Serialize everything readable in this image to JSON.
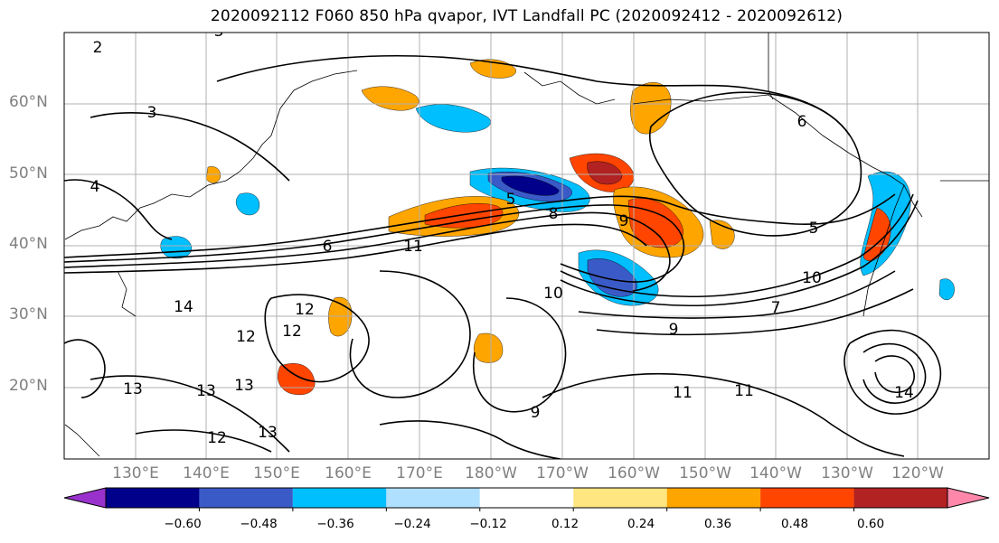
{
  "title": "2020092112 F060 850 hPa qvapor, IVT Landfall PC (2020092412 - 2020092612)",
  "latitude_labels": [
    "60°N",
    "50°N",
    "40°N",
    "30°N",
    "20°N"
  ],
  "longitude_labels": [
    "130°E",
    "140°E",
    "150°E",
    "160°E",
    "170°E",
    "180°W",
    "170°W",
    "160°W",
    "150°W",
    "140°W",
    "130°W",
    "120°W"
  ],
  "contour_labels": [
    "2",
    "3",
    "3",
    "4",
    "5",
    "5",
    "6",
    "6",
    "7",
    "8",
    "9",
    "9",
    "9",
    "10",
    "10",
    "11",
    "11",
    "11",
    "12",
    "12",
    "12",
    "12",
    "13",
    "13",
    "13",
    "13",
    "14",
    "14"
  ],
  "colorbar": {
    "ticks": [
      "−0.60",
      "−0.48",
      "−0.36",
      "−0.24",
      "−0.12",
      "0.12",
      "0.24",
      "0.36",
      "0.48",
      "0.60"
    ],
    "colors": [
      "#9932cc",
      "#00008b",
      "#3a5bc7",
      "#00bfff",
      "#b0e0ff",
      "#ffffff",
      "#ffe680",
      "#ffa500",
      "#ff4500",
      "#b22222",
      "#ff88aa"
    ]
  }
}
